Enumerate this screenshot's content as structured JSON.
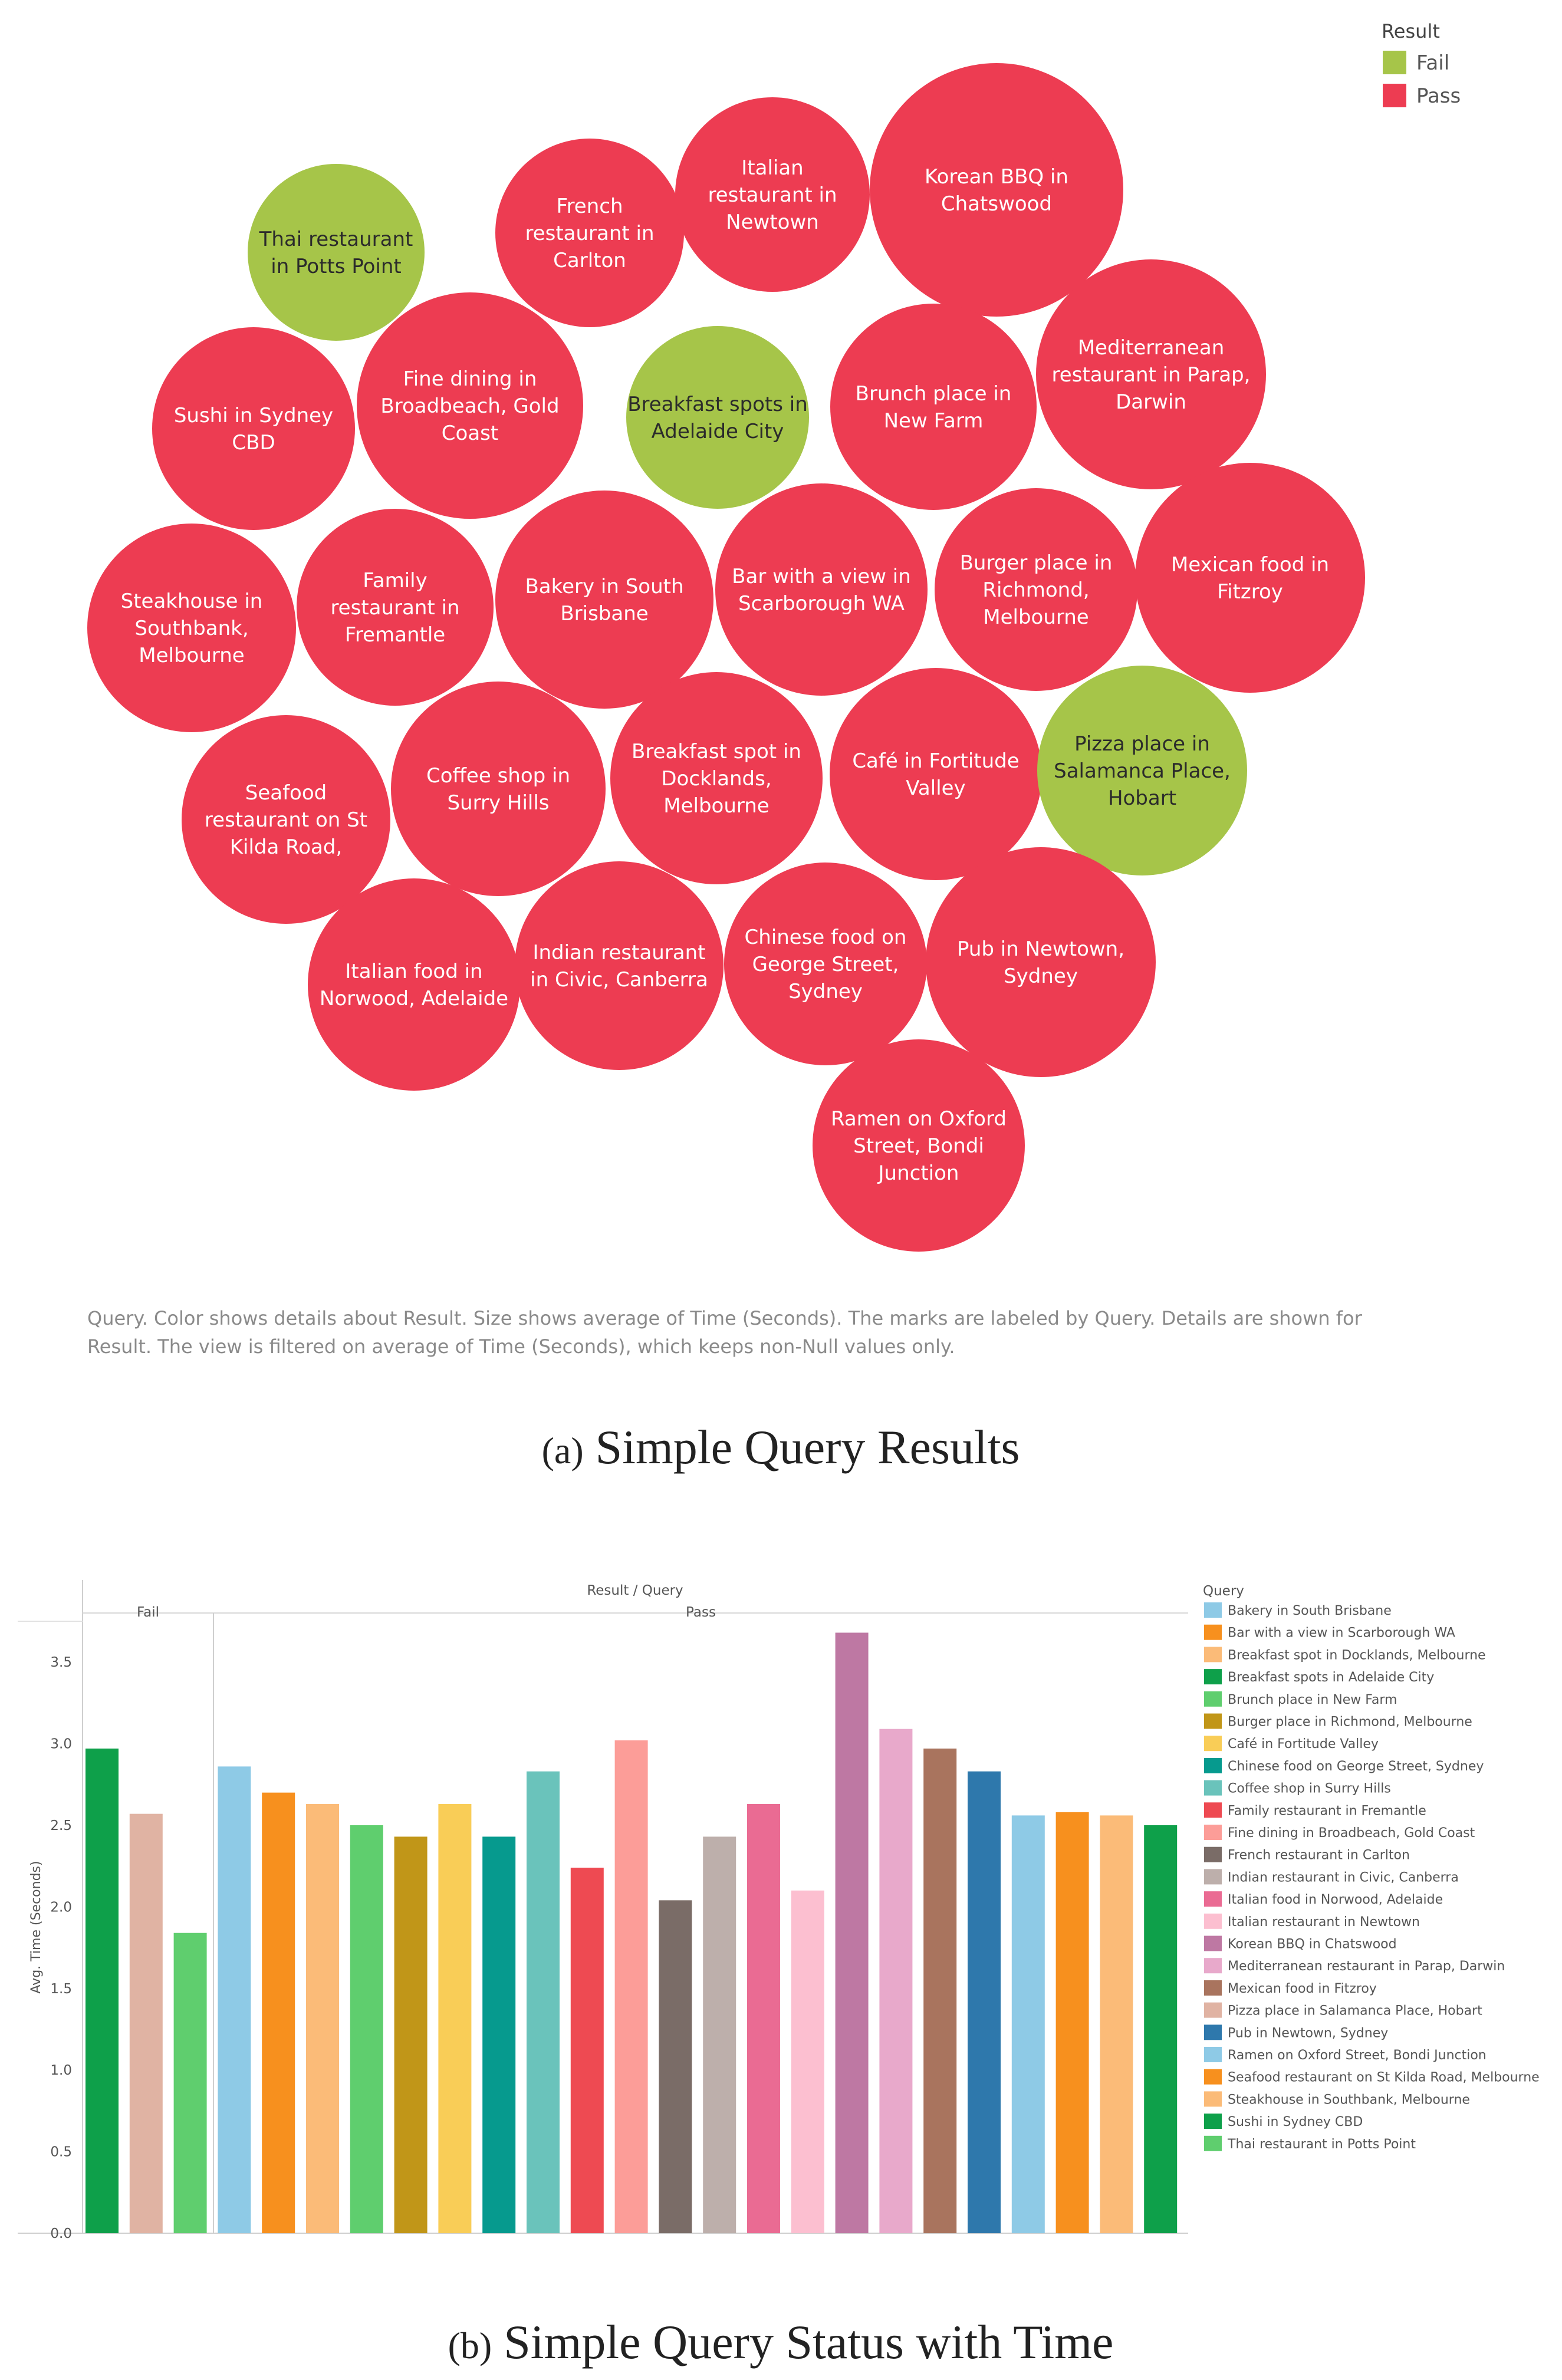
{
  "chart_data": [
    {
      "type": "bubble",
      "legend": {
        "title": "Result",
        "items": [
          {
            "label": "Fail",
            "color": "#a6c549"
          },
          {
            "label": "Pass",
            "color": "#ed3c52"
          }
        ]
      },
      "encoding": {
        "color": "Result",
        "size": "average of Time (Seconds)",
        "label": "Query"
      },
      "bubbles": [
        {
          "query": "Thai restaurant in Potts Point",
          "lines": [
            "Thai restaurant",
            "in Potts Point"
          ],
          "result": "Fail"
        },
        {
          "query": "French restaurant in Carlton",
          "lines": [
            "French",
            "restaurant in",
            "Carlton"
          ],
          "result": "Pass"
        },
        {
          "query": "Italian restaurant in Newtown",
          "lines": [
            "Italian",
            "restaurant in",
            "Newtown"
          ],
          "result": "Pass"
        },
        {
          "query": "Korean BBQ in Chatswood",
          "lines": [
            "Korean BBQ in",
            "Chatswood"
          ],
          "result": "Pass"
        },
        {
          "query": "Mediterranean restaurant in Parap, Darwin",
          "lines": [
            "Mediterranean",
            "restaurant in Parap,",
            "Darwin"
          ],
          "result": "Pass"
        },
        {
          "query": "Sushi in Sydney CBD",
          "lines": [
            "Sushi in Sydney",
            "CBD"
          ],
          "result": "Pass"
        },
        {
          "query": "Fine dining in Broadbeach, Gold Coast",
          "lines": [
            "Fine dining in",
            "Broadbeach, Gold",
            "Coast"
          ],
          "result": "Pass"
        },
        {
          "query": "Breakfast spots in Adelaide City",
          "lines": [
            "Breakfast spots in",
            "Adelaide City"
          ],
          "result": "Fail"
        },
        {
          "query": "Brunch place in New Farm",
          "lines": [
            "Brunch place in",
            "New Farm"
          ],
          "result": "Pass"
        },
        {
          "query": "Steakhouse in Southbank, Melbourne",
          "lines": [
            "Steakhouse in",
            "Southbank,",
            "Melbourne"
          ],
          "result": "Pass"
        },
        {
          "query": "Family restaurant in Fremantle",
          "lines": [
            "Family",
            "restaurant in",
            "Fremantle"
          ],
          "result": "Pass"
        },
        {
          "query": "Bakery in South Brisbane",
          "lines": [
            "Bakery in South",
            "Brisbane"
          ],
          "result": "Pass"
        },
        {
          "query": "Bar with a view in Scarborough WA",
          "lines": [
            "Bar with a view in",
            "Scarborough WA"
          ],
          "result": "Pass"
        },
        {
          "query": "Burger place in Richmond, Melbourne",
          "lines": [
            "Burger place in",
            "Richmond,",
            "Melbourne"
          ],
          "result": "Pass"
        },
        {
          "query": "Mexican food in Fitzroy",
          "lines": [
            "Mexican food in",
            "Fitzroy"
          ],
          "result": "Pass"
        },
        {
          "query": "Seafood restaurant on St Kilda Road,",
          "lines": [
            "Seafood",
            "restaurant on St",
            "Kilda Road,"
          ],
          "result": "Pass"
        },
        {
          "query": "Coffee shop in Surry Hills",
          "lines": [
            "Coffee shop in",
            "Surry Hills"
          ],
          "result": "Pass"
        },
        {
          "query": "Breakfast spot in Docklands, Melbourne",
          "lines": [
            "Breakfast spot in",
            "Docklands,",
            "Melbourne"
          ],
          "result": "Pass"
        },
        {
          "query": "Café in Fortitude Valley",
          "lines": [
            "Café in Fortitude",
            "Valley"
          ],
          "result": "Pass"
        },
        {
          "query": "Pizza place in Salamanca Place, Hobart",
          "lines": [
            "Pizza place in",
            "Salamanca Place,",
            "Hobart"
          ],
          "result": "Fail"
        },
        {
          "query": "Italian food in Norwood, Adelaide",
          "lines": [
            "Italian food in",
            "Norwood, Adelaide"
          ],
          "result": "Pass"
        },
        {
          "query": "Indian restaurant in Civic, Canberra",
          "lines": [
            "Indian restaurant",
            "in Civic, Canberra"
          ],
          "result": "Pass"
        },
        {
          "query": "Chinese food on George Street, Sydney",
          "lines": [
            "Chinese food on",
            "George Street,",
            "Sydney"
          ],
          "result": "Pass"
        },
        {
          "query": "Pub in Newtown, Sydney",
          "lines": [
            "Pub in Newtown,",
            "Sydney"
          ],
          "result": "Pass"
        },
        {
          "query": "Ramen on Oxford Street, Bondi Junction",
          "lines": [
            "Ramen on Oxford",
            "Street, Bondi",
            "Junction"
          ],
          "result": "Pass"
        }
      ],
      "note_lines": [
        "Query.  Color shows details about Result.  Size shows average of Time (Seconds).  The marks are labeled by Query.  Details are shown for",
        "Result. The view is filtered on average of Time (Seconds), which keeps non-Null values only."
      ],
      "caption_tag": "(a)",
      "caption": "Simple Query Results"
    },
    {
      "type": "bar",
      "title": "Result / Query",
      "groups": [
        "Fail",
        "Pass"
      ],
      "ylabel": "Avg. Time (Seconds)",
      "ylim": [
        0,
        3.75
      ],
      "yticks": [
        "0.0",
        "0.5",
        "1.0",
        "1.5",
        "2.0",
        "2.5",
        "3.0",
        "3.5"
      ],
      "legend_title": "Query",
      "queries": [
        {
          "name": "Bakery in South Brisbane",
          "color": "#8ecae6"
        },
        {
          "name": "Bar with a view in Scarborough WA",
          "color": "#f7901e"
        },
        {
          "name": "Breakfast spot in Docklands, Melbourne",
          "color": "#fbbb78"
        },
        {
          "name": "Breakfast spots in Adelaide City",
          "color": "#0ea04a"
        },
        {
          "name": "Brunch place in New Farm",
          "color": "#5fce6e"
        },
        {
          "name": "Burger place in Richmond, Melbourne",
          "color": "#c19618"
        },
        {
          "name": "Café in Fortitude Valley",
          "color": "#f9cd57"
        },
        {
          "name": "Chinese food on George Street, Sydney",
          "color": "#069a8e"
        },
        {
          "name": "Coffee shop in Surry Hills",
          "color": "#6ac3bb"
        },
        {
          "name": "Family restaurant in Fremantle",
          "color": "#ee4a52"
        },
        {
          "name": "Fine dining in Broadbeach, Gold Coast",
          "color": "#fc9d98"
        },
        {
          "name": "French restaurant in Carlton",
          "color": "#7a6c67"
        },
        {
          "name": "Indian restaurant in Civic, Canberra",
          "color": "#bdafab"
        },
        {
          "name": "Italian food in Norwood, Adelaide",
          "color": "#ea6b93"
        },
        {
          "name": "Italian restaurant in Newtown",
          "color": "#fcbfd0"
        },
        {
          "name": "Korean BBQ in Chatswood",
          "color": "#be78a3"
        },
        {
          "name": "Mediterranean restaurant in Parap, Darwin",
          "color": "#e8a9cb"
        },
        {
          "name": "Mexican food in Fitzroy",
          "color": "#a9745e"
        },
        {
          "name": "Pizza place in Salamanca Place, Hobart",
          "color": "#e0b3a3"
        },
        {
          "name": "Pub in Newtown, Sydney",
          "color": "#2e78ac"
        },
        {
          "name": "Ramen on Oxford Street, Bondi Junction",
          "color": "#8ecae6"
        },
        {
          "name": "Seafood restaurant on St Kilda Road, Melbourne",
          "color": "#f7901e"
        },
        {
          "name": "Steakhouse in Southbank, Melbourne",
          "color": "#fbbb78"
        },
        {
          "name": "Sushi in Sydney CBD",
          "color": "#0ea04a"
        },
        {
          "name": "Thai restaurant in Potts Point",
          "color": "#5fce6e"
        }
      ],
      "bars": [
        {
          "group": "Fail",
          "query": "Breakfast spots in Adelaide City",
          "value": 2.97
        },
        {
          "group": "Fail",
          "query": "Pizza place in Salamanca Place, Hobart",
          "value": 2.57
        },
        {
          "group": "Fail",
          "query": "Thai restaurant in Potts Point",
          "value": 1.84
        },
        {
          "group": "Pass",
          "query": "Bakery in South Brisbane",
          "value": 2.86
        },
        {
          "group": "Pass",
          "query": "Bar with a view in Scarborough WA",
          "value": 2.7
        },
        {
          "group": "Pass",
          "query": "Breakfast spot in Docklands, Melbourne",
          "value": 2.63
        },
        {
          "group": "Pass",
          "query": "Brunch place in New Farm",
          "value": 2.5
        },
        {
          "group": "Pass",
          "query": "Burger place in Richmond, Melbourne",
          "value": 2.43
        },
        {
          "group": "Pass",
          "query": "Café in Fortitude Valley",
          "value": 2.63
        },
        {
          "group": "Pass",
          "query": "Chinese food on George Street, Sydney",
          "value": 2.43
        },
        {
          "group": "Pass",
          "query": "Coffee shop in Surry Hills",
          "value": 2.83
        },
        {
          "group": "Pass",
          "query": "Family restaurant in Fremantle",
          "value": 2.24
        },
        {
          "group": "Pass",
          "query": "Fine dining in Broadbeach, Gold Coast",
          "value": 3.02
        },
        {
          "group": "Pass",
          "query": "French restaurant in Carlton",
          "value": 2.04
        },
        {
          "group": "Pass",
          "query": "Indian restaurant in Civic, Canberra",
          "value": 2.43
        },
        {
          "group": "Pass",
          "query": "Italian food in Norwood, Adelaide",
          "value": 2.63
        },
        {
          "group": "Pass",
          "query": "Italian restaurant in Newtown",
          "value": 2.1
        },
        {
          "group": "Pass",
          "query": "Korean BBQ in Chatswood",
          "value": 3.68
        },
        {
          "group": "Pass",
          "query": "Mediterranean restaurant in Parap, Darwin",
          "value": 3.09
        },
        {
          "group": "Pass",
          "query": "Mexican food in Fitzroy",
          "value": 2.97
        },
        {
          "group": "Pass",
          "query": "Pub in Newtown, Sydney",
          "value": 2.83
        },
        {
          "group": "Pass",
          "query": "Ramen on Oxford Street, Bondi Junction",
          "value": 2.56
        },
        {
          "group": "Pass",
          "query": "Seafood restaurant on St Kilda Road, Melbourne",
          "value": 2.58
        },
        {
          "group": "Pass",
          "query": "Steakhouse in Southbank, Melbourne",
          "value": 2.56
        },
        {
          "group": "Pass",
          "query": "Sushi in Sydney CBD",
          "value": 2.5
        }
      ],
      "caption_tag": "(b)",
      "caption": "Simple Query Status with Time"
    }
  ]
}
